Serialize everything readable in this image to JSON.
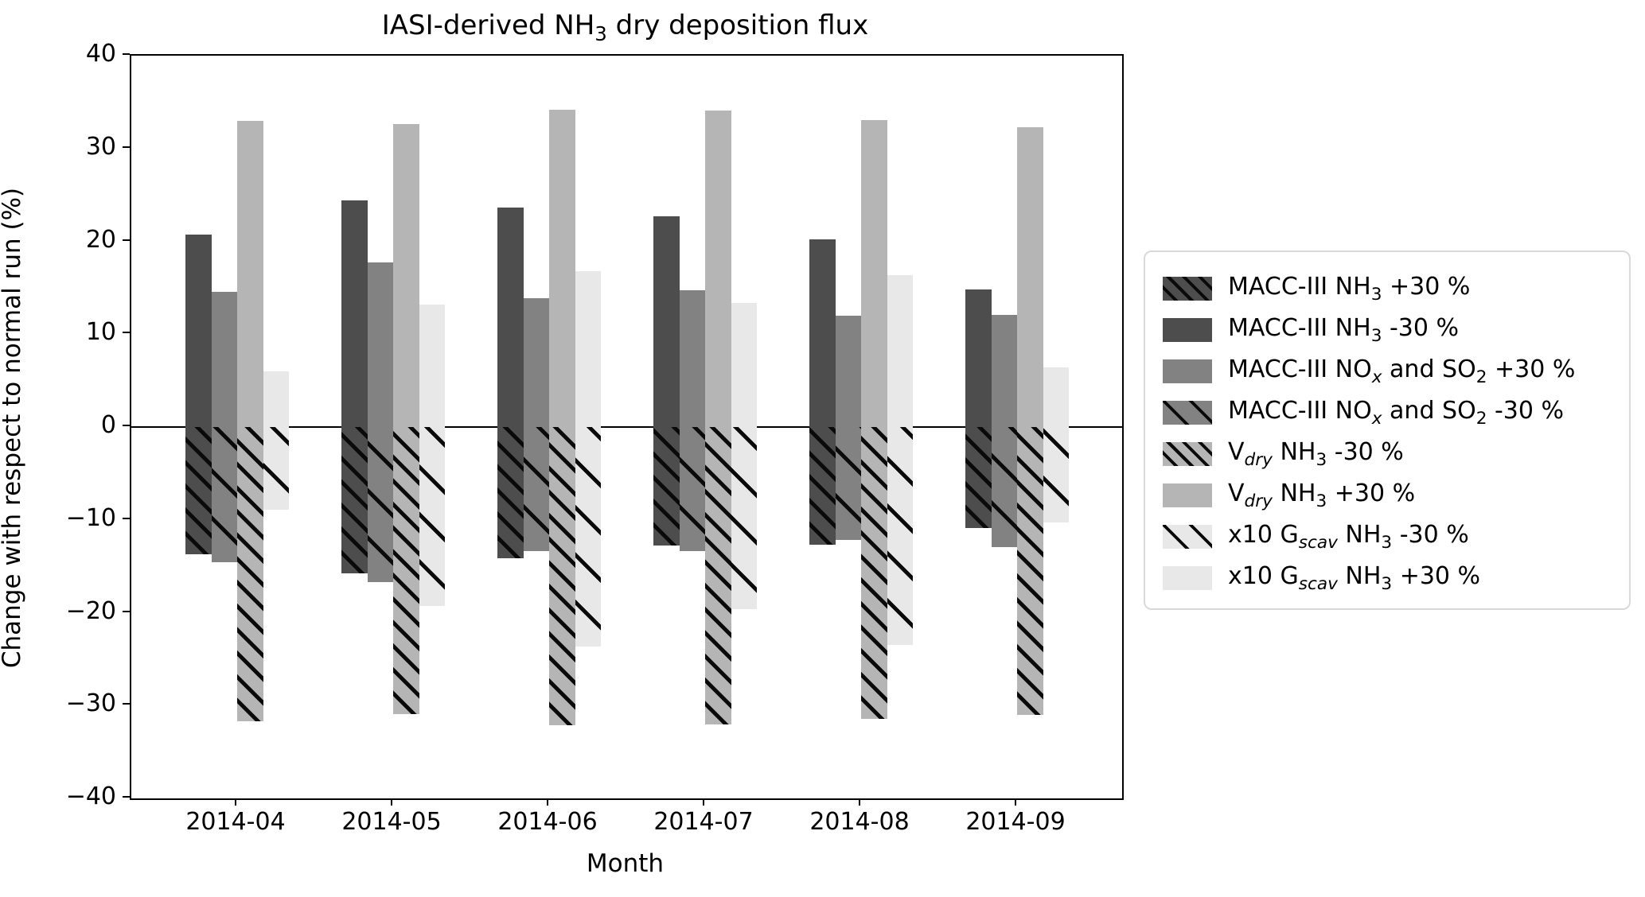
{
  "title": "IASI-derived NH3 dry deposition flux",
  "title_parts": [
    {
      "t": "IASI-derived NH"
    },
    {
      "t": "3",
      "sub": true
    },
    {
      "t": " dry deposition flux"
    }
  ],
  "axes": {
    "ylabel": "Change with respect to normal run (%)",
    "xlabel": "Month",
    "ytick_labels": [
      "40",
      "30",
      "20",
      "10",
      "0",
      "−10",
      "−20",
      "−30",
      "−40"
    ],
    "ytick_values": [
      40,
      30,
      20,
      10,
      0,
      -10,
      -20,
      -30,
      -40
    ]
  },
  "chart_data": {
    "type": "bar",
    "title": "IASI-derived NH3 dry deposition flux",
    "xlabel": "Month",
    "ylabel": "Change with respect to normal run (%)",
    "ylim": [
      -40,
      40
    ],
    "grid": false,
    "legend_position": "right-outside",
    "categories": [
      "2014-04",
      "2014-05",
      "2014-06",
      "2014-07",
      "2014-08",
      "2014-09"
    ],
    "series": [
      {
        "name": "MACC-III NH3 +30 %",
        "color": "#4d4d4d",
        "hatch": "dense",
        "column": 0,
        "values": [
          -13.7,
          -15.8,
          -14.1,
          -12.8,
          -12.7,
          -10.9
        ],
        "label_parts": [
          {
            "t": "MACC-III NH"
          },
          {
            "t": "3",
            "sub": true
          },
          {
            "t": " +30 %"
          }
        ]
      },
      {
        "name": "MACC-III NH3 -30 %",
        "color": "#4d4d4d",
        "hatch": "none",
        "column": 0,
        "values": [
          20.7,
          24.4,
          23.6,
          22.7,
          20.2,
          14.8
        ],
        "label_parts": [
          {
            "t": "MACC-III NH"
          },
          {
            "t": "3",
            "sub": true
          },
          {
            "t": " -30 %"
          }
        ]
      },
      {
        "name": "MACC-III NOx and SO2 +30 %",
        "color": "#828282",
        "hatch": "none",
        "column": 1,
        "values": [
          14.6,
          17.7,
          13.9,
          14.7,
          12.0,
          12.1
        ],
        "label_parts": [
          {
            "t": "MACC-III NO"
          },
          {
            "t": "x",
            "sub": true,
            "i": true
          },
          {
            "t": " and SO"
          },
          {
            "t": "2",
            "sub": true
          },
          {
            "t": " +30 %"
          }
        ]
      },
      {
        "name": "MACC-III NOx and SO2 -30 %",
        "color": "#828282",
        "hatch": "sparse",
        "column": 1,
        "values": [
          -14.6,
          -16.7,
          -13.4,
          -13.4,
          -12.2,
          -12.9
        ],
        "label_parts": [
          {
            "t": "MACC-III NO"
          },
          {
            "t": "x",
            "sub": true,
            "i": true
          },
          {
            "t": " and SO"
          },
          {
            "t": "2",
            "sub": true
          },
          {
            "t": " -30 %"
          }
        ]
      },
      {
        "name": "Vdry NH3 -30 %",
        "color": "#b5b5b5",
        "hatch": "dense",
        "column": 2,
        "values": [
          -31.7,
          -30.9,
          -32.1,
          -32.0,
          -31.4,
          -31.0
        ],
        "label_parts": [
          {
            "t": "V"
          },
          {
            "t": "dry",
            "sub": true,
            "i": true
          },
          {
            "t": " NH"
          },
          {
            "t": "3",
            "sub": true
          },
          {
            "t": " -30 %"
          }
        ]
      },
      {
        "name": "Vdry NH3 +30 %",
        "color": "#b5b5b5",
        "hatch": "none",
        "column": 2,
        "values": [
          33.0,
          32.6,
          34.2,
          34.1,
          33.1,
          32.3
        ],
        "label_parts": [
          {
            "t": "V"
          },
          {
            "t": "dry",
            "sub": true,
            "i": true
          },
          {
            "t": " NH"
          },
          {
            "t": "3",
            "sub": true
          },
          {
            "t": " +30 %"
          }
        ]
      },
      {
        "name": "x10 Gscav NH3 -30 %",
        "color": "#e8e8e8",
        "hatch": "sparse",
        "column": 3,
        "values": [
          -8.9,
          -19.3,
          -23.6,
          -19.6,
          -23.5,
          -10.3
        ],
        "label_parts": [
          {
            "t": "x10 G"
          },
          {
            "t": "scav",
            "sub": true,
            "i": true
          },
          {
            "t": " NH"
          },
          {
            "t": "3",
            "sub": true
          },
          {
            "t": " -30 %"
          }
        ]
      },
      {
        "name": "x10 Gscav NH3 +30 %",
        "color": "#e8e8e8",
        "hatch": "none",
        "column": 3,
        "values": [
          6.0,
          13.2,
          16.8,
          13.4,
          16.4,
          6.4
        ],
        "label_parts": [
          {
            "t": "x10 G"
          },
          {
            "t": "scav",
            "sub": true,
            "i": true
          },
          {
            "t": " NH"
          },
          {
            "t": "3",
            "sub": true
          },
          {
            "t": " +30 %"
          }
        ]
      }
    ]
  }
}
